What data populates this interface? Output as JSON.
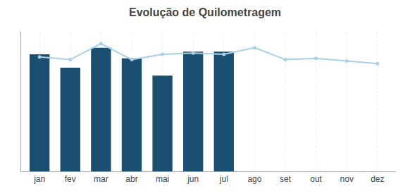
{
  "chart_data": {
    "type": "bar",
    "title": "Evolução de Quilometragem",
    "categories": [
      "jan",
      "fev",
      "mar",
      "abr",
      "mai",
      "jun",
      "jul",
      "ago",
      "set",
      "out",
      "nov",
      "dez"
    ],
    "series": [
      {
        "type": "bar",
        "color": "#1b4f72",
        "values": [
          88,
          78,
          93,
          85,
          72,
          90,
          90,
          null,
          null,
          null,
          null,
          null
        ]
      },
      {
        "type": "line",
        "color": "#a9cfe8",
        "marker": "circle",
        "values": [
          86,
          84,
          96,
          84,
          88,
          89,
          88,
          93,
          84,
          85,
          83,
          81
        ]
      }
    ],
    "ylim": [
      0,
      105
    ],
    "grid": true,
    "tick_labels": "x"
  }
}
